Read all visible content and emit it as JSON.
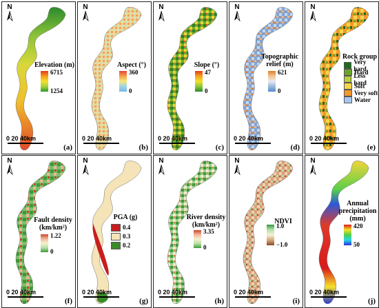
{
  "scale_bar": {
    "ticks": "0  20  40km"
  },
  "north_label": "N",
  "panels": [
    {
      "id": "a",
      "label": "(a)",
      "title": "Elevation (m)",
      "max": "6715",
      "min": "1254",
      "colors": [
        "#e23a1a",
        "#f59a1c",
        "#f5e02b",
        "#a6d13a",
        "#2c9a2c"
      ]
    },
    {
      "id": "b",
      "label": "(b)",
      "title": "Aspect (°)",
      "max": "360",
      "min": "0",
      "colors": [
        "#e8453a",
        "#f3a04a",
        "#f6e87a",
        "#9ed4e3",
        "#7bb7e8"
      ]
    },
    {
      "id": "c",
      "label": "(c)",
      "title": "Slope (°)",
      "max": "47",
      "min": "0",
      "colors": [
        "#e23a1a",
        "#f5a21c",
        "#f5e02b",
        "#8cc63a",
        "#2c8a2c"
      ]
    },
    {
      "id": "d",
      "label": "(d)",
      "title": "Topographic relief (m)",
      "max": "621",
      "min": "0",
      "colors": [
        "#e07a2a",
        "#f2c68f",
        "#e9e9f0",
        "#9ab8de",
        "#5a8acb"
      ]
    },
    {
      "id": "e",
      "label": "(e)",
      "title": "Rock group"
    },
    {
      "id": "f",
      "label": "(f)",
      "title": "Fault density (km/km²)",
      "max": "1.22",
      "min": "0",
      "colors": [
        "#c8472a",
        "#f2b49a",
        "#f6f2d0",
        "#b7e0a4",
        "#3b9a3b"
      ]
    },
    {
      "id": "g",
      "label": "(g)",
      "title": "PGA (g)"
    },
    {
      "id": "h",
      "label": "(h)",
      "title": "River density (km/km²)",
      "max": "3.35",
      "min": "0",
      "colors": [
        "#c8472a",
        "#f2b49a",
        "#f6f2d0",
        "#b7e0a4",
        "#3b9a3b"
      ]
    },
    {
      "id": "i",
      "label": "(i)",
      "title": "NDVI",
      "max": "1.0",
      "min": "−1.0",
      "colors": [
        "#2e9a3e",
        "#b8e0a8",
        "#f6f0d8",
        "#d4a878",
        "#8a4a2a"
      ]
    },
    {
      "id": "j",
      "label": "(j)",
      "title": "Annual precipitation (mm)",
      "max": "420",
      "min": "50",
      "colors": [
        "#d81a1a",
        "#f6e02a",
        "#4ad04a",
        "#2ad6e8",
        "#2a2ad8"
      ]
    }
  ],
  "rock_group": [
    {
      "label": "Very hard",
      "color": "#1e6b1e"
    },
    {
      "label": "Hard",
      "color": "#6ca42a"
    },
    {
      "label": "Less hard",
      "color": "#b8d13a"
    },
    {
      "label": "Soft",
      "color": "#f4d64a"
    },
    {
      "label": "Very soft",
      "color": "#f39a2a"
    },
    {
      "label": "Water",
      "color": "#a9c8ef"
    }
  ],
  "pga": [
    {
      "label": "0.4",
      "color": "#c81e1e"
    },
    {
      "label": "0.3",
      "color": "#f4e4b8"
    },
    {
      "label": "0.2",
      "color": "#3a8a2a"
    }
  ]
}
